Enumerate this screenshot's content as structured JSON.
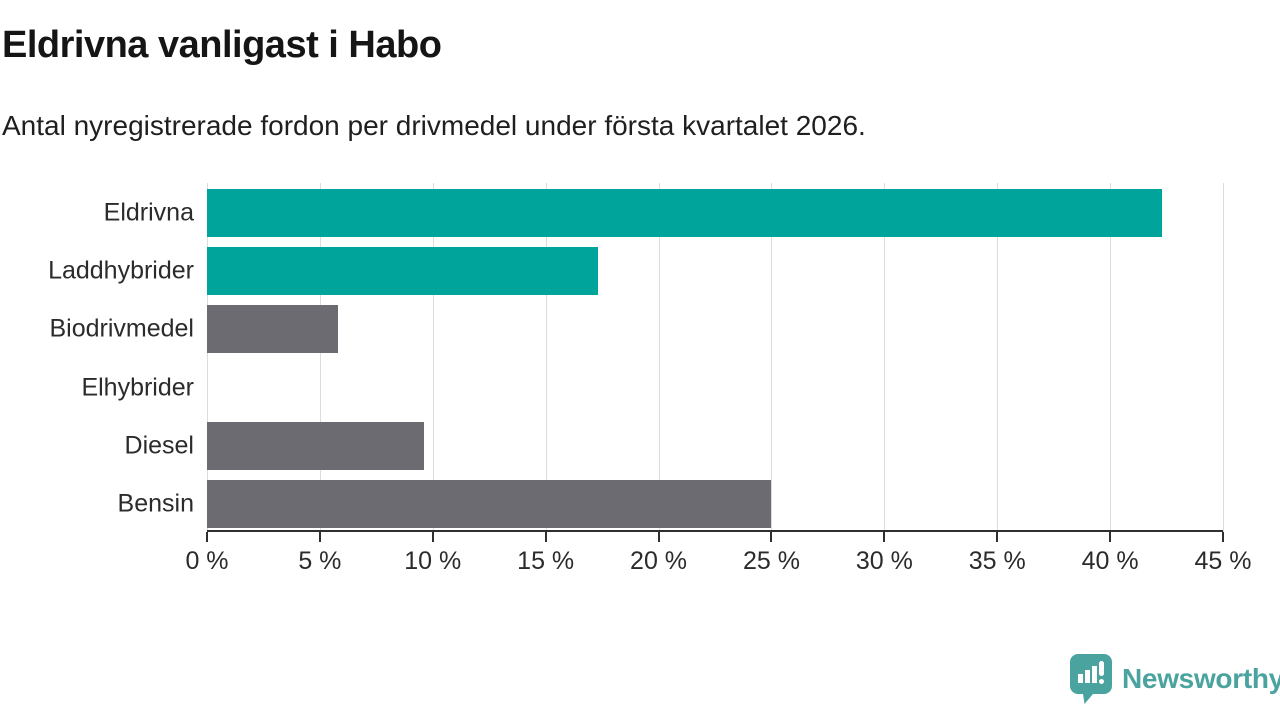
{
  "header": {
    "title": "Eldrivna vanligast i Habo",
    "subtitle": "Antal nyregistrerade fordon per drivmedel under första kvartalet 2026."
  },
  "chart_data": {
    "type": "bar",
    "orientation": "horizontal",
    "title": "Eldrivna vanligast i Habo",
    "subtitle": "Antal nyregistrerade fordon per drivmedel under första kvartalet 2026.",
    "categories": [
      "Eldrivna",
      "Laddhybrider",
      "Biodrivmedel",
      "Elhybrider",
      "Diesel",
      "Bensin"
    ],
    "values": [
      42.3,
      17.3,
      5.8,
      0,
      9.6,
      25
    ],
    "unit": "%",
    "xlim": [
      0,
      45
    ],
    "x_ticks": [
      0,
      5,
      10,
      15,
      20,
      25,
      30,
      35,
      40,
      45
    ],
    "x_tick_labels": [
      "0 %",
      "5 %",
      "10 %",
      "15 %",
      "20 %",
      "25 %",
      "30 %",
      "35 %",
      "40 %",
      "45 %"
    ],
    "bar_colors": [
      "#00a49b",
      "#00a49b",
      "#6c6b71",
      "#6c6b71",
      "#6c6b71",
      "#6c6b71"
    ],
    "highlight_color": "#00a49b",
    "default_color": "#6c6b71",
    "gridline_color": "#dcdcdc",
    "axis_color": "#2f2f2f",
    "grid": true,
    "legend": "none"
  },
  "footer": {
    "brand": "Newsworthy",
    "brand_color": "#4aa39e"
  }
}
